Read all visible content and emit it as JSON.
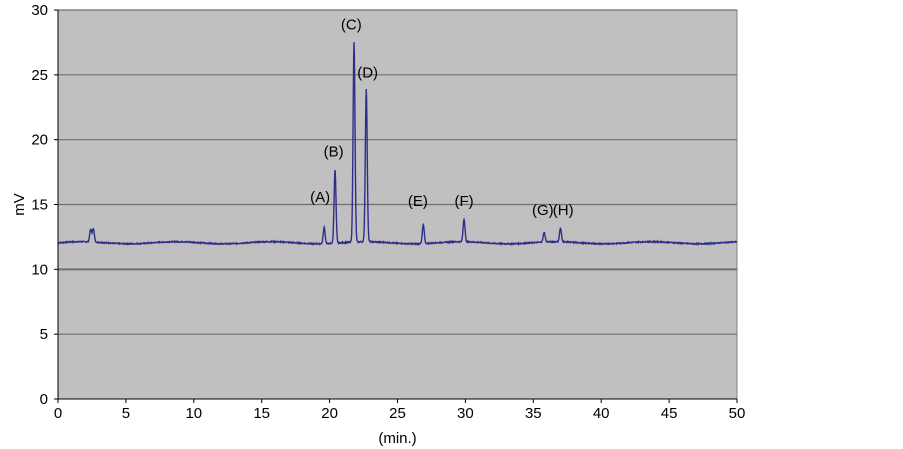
{
  "chart_data": {
    "type": "line",
    "xlabel": "(min.)",
    "ylabel": "mV",
    "xlim": [
      0,
      50
    ],
    "ylim": [
      0,
      30
    ],
    "xticks": [
      0,
      5,
      10,
      15,
      20,
      25,
      30,
      35,
      40,
      45,
      50
    ],
    "yticks": [
      0,
      5,
      10,
      15,
      20,
      25,
      30
    ],
    "grid": "horizontal",
    "colors": {
      "plot_bg": "#c0c0c0",
      "line": "#2e2e8a",
      "grid": "#707070"
    },
    "baseline": 12.05,
    "peaks": [
      {
        "x": 2.4,
        "y": 13.0,
        "label": ""
      },
      {
        "x": 2.6,
        "y": 13.1,
        "label": ""
      },
      {
        "x": 19.6,
        "y": 13.3,
        "label": ""
      },
      {
        "x": 20.4,
        "y": 17.7,
        "label": ""
      },
      {
        "x": 21.8,
        "y": 27.5,
        "label": ""
      },
      {
        "x": 22.7,
        "y": 23.8,
        "label": ""
      },
      {
        "x": 26.9,
        "y": 13.5,
        "label": ""
      },
      {
        "x": 29.9,
        "y": 13.8,
        "label": ""
      },
      {
        "x": 35.8,
        "y": 12.8,
        "label": ""
      },
      {
        "x": 37.0,
        "y": 13.1,
        "label": ""
      }
    ],
    "annotations": [
      {
        "text": "(A)",
        "x": 19.3,
        "y": 15.2
      },
      {
        "text": "(B)",
        "x": 20.3,
        "y": 18.7
      },
      {
        "text": "(C)",
        "x": 21.6,
        "y": 28.5
      },
      {
        "text": "(D)",
        "x": 22.8,
        "y": 24.8
      },
      {
        "text": "(E)",
        "x": 26.5,
        "y": 14.9
      },
      {
        "text": "(F)",
        "x": 29.9,
        "y": 14.9
      },
      {
        "text": "(G)",
        "x": 35.7,
        "y": 14.2
      },
      {
        "text": "(H)",
        "x": 37.2,
        "y": 14.2
      }
    ]
  }
}
